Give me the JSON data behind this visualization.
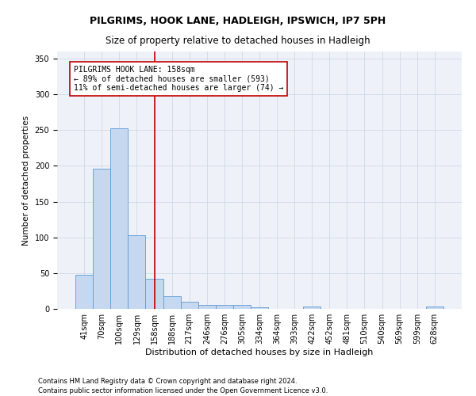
{
  "title": "PILGRIMS, HOOK LANE, HADLEIGH, IPSWICH, IP7 5PH",
  "subtitle": "Size of property relative to detached houses in Hadleigh",
  "xlabel": "Distribution of detached houses by size in Hadleigh",
  "ylabel": "Number of detached properties",
  "categories": [
    "41sqm",
    "70sqm",
    "100sqm",
    "129sqm",
    "158sqm",
    "188sqm",
    "217sqm",
    "246sqm",
    "276sqm",
    "305sqm",
    "334sqm",
    "364sqm",
    "393sqm",
    "422sqm",
    "452sqm",
    "481sqm",
    "510sqm",
    "540sqm",
    "569sqm",
    "599sqm",
    "628sqm"
  ],
  "values": [
    48,
    196,
    253,
    103,
    42,
    18,
    10,
    5,
    5,
    5,
    2,
    0,
    0,
    3,
    0,
    0,
    0,
    0,
    0,
    0,
    3
  ],
  "bar_color": "#c5d8f0",
  "bar_edge_color": "#5b9bd5",
  "vline_x_index": 4,
  "vline_color": "#c00000",
  "annotation_text": "PILGRIMS HOOK LANE: 158sqm\n← 89% of detached houses are smaller (593)\n11% of semi-detached houses are larger (74) →",
  "annotation_box_color": "#ffffff",
  "annotation_box_edge_color": "#c00000",
  "ylim": [
    0,
    360
  ],
  "yticks": [
    0,
    50,
    100,
    150,
    200,
    250,
    300,
    350
  ],
  "grid_color": "#d0d8e8",
  "background_color": "#eef2f8",
  "footer": "Contains HM Land Registry data © Crown copyright and database right 2024.\nContains public sector information licensed under the Open Government Licence v3.0.",
  "title_fontsize": 9,
  "subtitle_fontsize": 8.5,
  "axis_label_fontsize": 7.5,
  "tick_fontsize": 7,
  "annotation_fontsize": 7,
  "footer_fontsize": 6
}
